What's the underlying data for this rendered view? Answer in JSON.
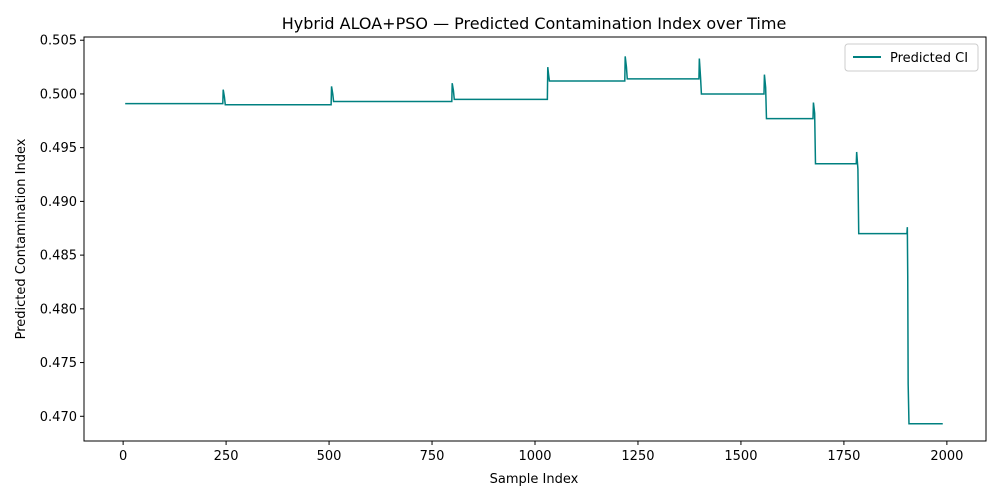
{
  "chart_data": {
    "type": "line",
    "title": "Hybrid ALOA+PSO — Predicted Contamination Index over Time",
    "xlabel": "Sample Index",
    "ylabel": "Predicted Contamination Index",
    "xlim": [
      -95,
      2095
    ],
    "ylim": [
      0.4677,
      0.5053
    ],
    "x_ticks": [
      0,
      250,
      500,
      750,
      1000,
      1250,
      1500,
      1750,
      2000
    ],
    "y_ticks": [
      0.47,
      0.475,
      0.48,
      0.485,
      0.49,
      0.495,
      0.5,
      0.505
    ],
    "grid": false,
    "legend_position": "top-right",
    "series": [
      {
        "name": "Predicted CI",
        "color": "#008080",
        "x": [
          5,
          242,
          243,
          246,
          248,
          505,
          506,
          509,
          511,
          798,
          799,
          802,
          804,
          1030,
          1031,
          1033,
          1035,
          1218,
          1219,
          1222,
          1224,
          1398,
          1399,
          1402,
          1404,
          1556,
          1557,
          1560,
          1562,
          1675,
          1676,
          1679,
          1681,
          1780,
          1781,
          1784,
          1786,
          1903,
          1904,
          1905,
          1906,
          1908,
          1990
        ],
        "y": [
          0.4991,
          0.4991,
          0.5004,
          0.4997,
          0.499,
          0.499,
          0.5007,
          0.5,
          0.4993,
          0.4993,
          0.501,
          0.5003,
          0.4995,
          0.4995,
          0.5025,
          0.5018,
          0.5012,
          0.5012,
          0.5035,
          0.5025,
          0.5014,
          0.5014,
          0.5033,
          0.5015,
          0.5,
          0.5,
          0.5018,
          0.5006,
          0.4977,
          0.4977,
          0.4992,
          0.4982,
          0.4935,
          0.4935,
          0.4946,
          0.493,
          0.487,
          0.487,
          0.4876,
          0.483,
          0.473,
          0.4693,
          0.4693
        ]
      }
    ]
  }
}
